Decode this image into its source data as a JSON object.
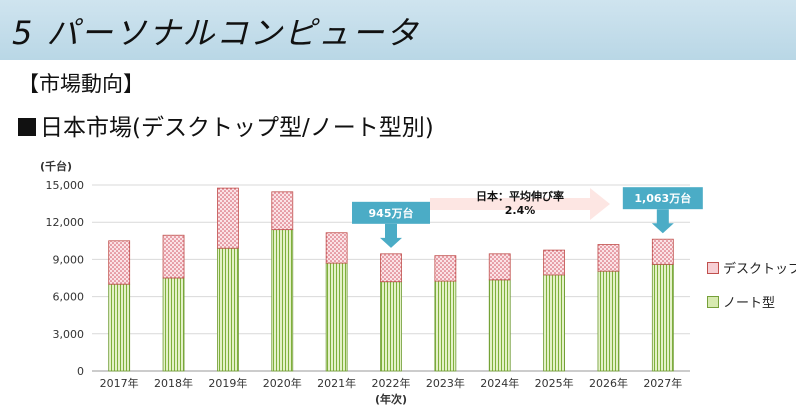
{
  "header": {
    "title": "5 パーソナルコンピュータ"
  },
  "section": {
    "label": "【市場動向】"
  },
  "subtitle": "日本市場(デスクトップ型/ノート型別)",
  "chart_data": {
    "type": "bar",
    "stacked": true,
    "categories": [
      "2017年",
      "2018年",
      "2019年",
      "2020年",
      "2021年",
      "2022年",
      "2023年",
      "2024年",
      "2025年",
      "2026年",
      "2027年"
    ],
    "series": [
      {
        "name": "ノート型",
        "color": "#d7eab0",
        "values": [
          7000,
          7500,
          9900,
          11400,
          8700,
          7200,
          7250,
          7350,
          7750,
          8050,
          8600
        ]
      },
      {
        "name": "デスクトップ型",
        "color": "#f7cfd4",
        "values": [
          3500,
          3450,
          4850,
          3050,
          2450,
          2250,
          2050,
          2100,
          2000,
          2150,
          2030
        ]
      }
    ],
    "ylabel": "(千台)",
    "xlabel": "(年次)",
    "ylim": [
      0,
      15000
    ],
    "yticks": [
      "0",
      "3,000",
      "6,000",
      "9,000",
      "12,000",
      "15,000"
    ],
    "grid": true,
    "legend": "right",
    "annotations": [
      {
        "text": "945万台",
        "category": "2022年"
      },
      {
        "text": "1,063万台",
        "category": "2027年"
      },
      {
        "text": "日本：平均伸び率",
        "text2": "2.4%"
      }
    ]
  }
}
